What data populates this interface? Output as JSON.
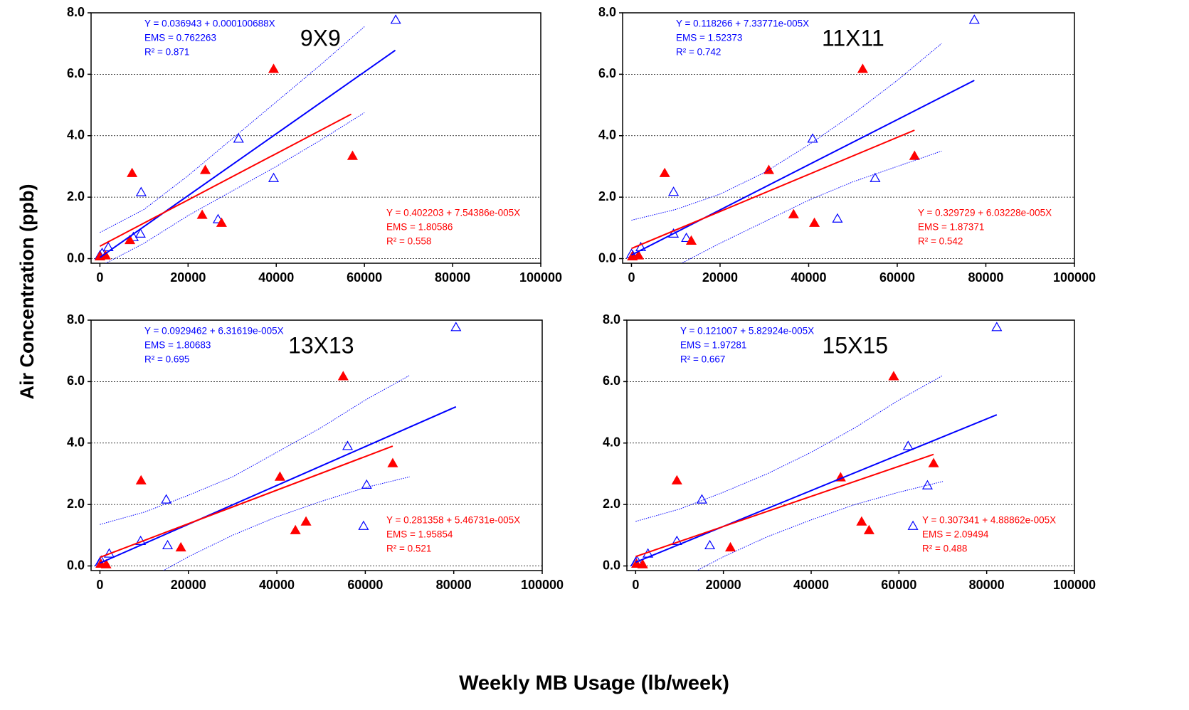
{
  "xlabel": "Weekly MB Usage (lb/week)",
  "ylabel": "Air Concentration (ppb)",
  "chart_data": [
    {
      "type": "scatter",
      "title": "9X9",
      "xlim": [
        -2000,
        100000
      ],
      "ylim": [
        -0.15,
        8
      ],
      "xticks": [
        0,
        20000,
        40000,
        60000,
        80000,
        100000
      ],
      "yticks": [
        {
          "value": 0,
          "label": "0.0"
        },
        {
          "value": 2,
          "label": "2.0"
        },
        {
          "value": 4,
          "label": "4.0"
        },
        {
          "value": 6,
          "label": "6.0"
        },
        {
          "value": 8,
          "label": "8.0"
        }
      ],
      "grid": true,
      "series": [
        {
          "mark": "open-triangle",
          "color": "#0000ff",
          "x": [
            0,
            500,
            1900,
            7600,
            9200,
            9350,
            26800,
            31450,
            39400,
            67100
          ],
          "values": [
            0.1,
            0.18,
            0.37,
            0.7,
            0.81,
            2.16,
            1.28,
            3.9,
            2.62,
            7.77
          ]
        },
        {
          "mark": "filled-triangle",
          "color": "#ff0000",
          "x": [
            0,
            1300,
            6800,
            7300,
            23200,
            23900,
            27600,
            39400,
            57300
          ],
          "values": [
            0.07,
            0.1,
            0.6,
            2.78,
            1.42,
            2.88,
            1.16,
            6.17,
            3.34
          ]
        },
        {
          "mark": "line",
          "color": "#0000ff",
          "x": [
            0,
            67000
          ],
          "values": [
            0.037,
            6.78
          ]
        },
        {
          "mark": "line",
          "color": "#ff0000",
          "x": [
            0,
            57000
          ],
          "values": [
            0.402,
            4.7
          ]
        },
        {
          "mark": "dotted-line",
          "color": "#0000ff",
          "x": [
            0,
            10000,
            20000,
            30000,
            40000,
            50000,
            60000
          ],
          "values": [
            0.85,
            1.6,
            2.7,
            3.9,
            5.1,
            6.3,
            7.55
          ]
        },
        {
          "mark": "dotted-line",
          "color": "#0000ff",
          "x": [
            0,
            10000,
            20000,
            30000,
            40000,
            50000,
            60000
          ],
          "values": [
            -0.25,
            0.5,
            1.4,
            2.2,
            3.0,
            3.85,
            4.75
          ]
        }
      ],
      "annotations": [
        {
          "color": "#0000ff",
          "corner": "top-left",
          "lines": [
            "Y = 0.036943 + 0.000100688X",
            "EMS = 0.762263",
            "R² = 0.871"
          ]
        },
        {
          "color": "#ff0000",
          "corner": "bottom-right",
          "lines": [
            "Y = 0.402203 + 7.54386e-005X",
            "EMS = 1.80586",
            "R² = 0.558"
          ]
        }
      ]
    },
    {
      "type": "scatter",
      "title": "11X11",
      "xlim": [
        -2000,
        100000
      ],
      "ylim": [
        -0.15,
        8
      ],
      "xticks": [
        0,
        20000,
        40000,
        60000,
        80000,
        100000
      ],
      "yticks": [
        {
          "value": 0,
          "label": "0.0"
        },
        {
          "value": 2,
          "label": "2.0"
        },
        {
          "value": 4,
          "label": "4.0"
        },
        {
          "value": 6,
          "label": "6.0"
        },
        {
          "value": 8,
          "label": "8.0"
        }
      ],
      "grid": true,
      "series": [
        {
          "mark": "open-triangle",
          "color": "#0000ff",
          "x": [
            0,
            300,
            2100,
            9500,
            9500,
            12400,
            40900,
            46500,
            55000,
            77400
          ],
          "values": [
            0.15,
            0.1,
            0.37,
            2.17,
            0.81,
            0.67,
            3.9,
            1.3,
            2.62,
            7.77
          ]
        },
        {
          "mark": "filled-triangle",
          "color": "#ff0000",
          "x": [
            200,
            1600,
            7500,
            13500,
            31000,
            36600,
            41300,
            52200,
            63900
          ],
          "values": [
            0.07,
            0.1,
            2.78,
            0.58,
            2.88,
            1.44,
            1.16,
            6.17,
            3.34
          ]
        },
        {
          "mark": "line",
          "color": "#0000ff",
          "x": [
            0,
            77400
          ],
          "values": [
            0.118,
            5.8
          ]
        },
        {
          "mark": "line",
          "color": "#ff0000",
          "x": [
            0,
            63900
          ],
          "values": [
            0.33,
            4.18
          ]
        },
        {
          "mark": "dotted-line",
          "color": "#0000ff",
          "x": [
            0,
            10000,
            20000,
            30000,
            40000,
            50000,
            60000,
            70000
          ],
          "values": [
            1.25,
            1.6,
            2.1,
            2.8,
            3.7,
            4.7,
            5.8,
            7.0
          ]
        },
        {
          "mark": "dotted-line",
          "color": "#0000ff",
          "x": [
            0,
            10000,
            20000,
            30000,
            40000,
            50000,
            60000,
            70000
          ],
          "values": [
            -1.0,
            -0.25,
            0.5,
            1.2,
            1.9,
            2.5,
            3.0,
            3.5
          ]
        }
      ],
      "annotations": [
        {
          "color": "#0000ff",
          "corner": "top-left",
          "lines": [
            "Y = 0.118266 + 7.33771e-005X",
            "EMS = 1.52373",
            "R² = 0.742"
          ]
        },
        {
          "color": "#ff0000",
          "corner": "bottom-right",
          "lines": [
            "Y = 0.329729 + 6.03228e-005X",
            "EMS = 1.87371",
            "R² = 0.542"
          ]
        }
      ]
    },
    {
      "type": "scatter",
      "title": "13X13",
      "xlim": [
        -2000,
        100000
      ],
      "ylim": [
        -0.15,
        8
      ],
      "xticks": [
        0,
        20000,
        40000,
        60000,
        80000,
        100000
      ],
      "yticks": [
        {
          "value": 0,
          "label": "0.0"
        },
        {
          "value": 2,
          "label": "2.0"
        },
        {
          "value": 4,
          "label": "4.0"
        },
        {
          "value": 6,
          "label": "6.0"
        },
        {
          "value": 8,
          "label": "8.0"
        }
      ],
      "grid": true,
      "series": [
        {
          "mark": "open-triangle",
          "color": "#0000ff",
          "x": [
            0,
            300,
            2100,
            9200,
            15000,
            15300,
            56000,
            59600,
            60300,
            80500
          ],
          "values": [
            0.12,
            0.17,
            0.4,
            0.81,
            2.16,
            0.67,
            3.9,
            1.3,
            2.64,
            7.77
          ]
        },
        {
          "mark": "filled-triangle",
          "color": "#ff0000",
          "x": [
            200,
            1400,
            9300,
            18300,
            40700,
            44200,
            46600,
            55000,
            66200
          ],
          "values": [
            0.07,
            0.05,
            2.78,
            0.6,
            2.9,
            1.16,
            1.44,
            6.17,
            3.34
          ]
        },
        {
          "mark": "line",
          "color": "#0000ff",
          "x": [
            0,
            80500
          ],
          "values": [
            0.093,
            5.18
          ]
        },
        {
          "mark": "line",
          "color": "#ff0000",
          "x": [
            0,
            66200
          ],
          "values": [
            0.281,
            3.9
          ]
        },
        {
          "mark": "dotted-line",
          "color": "#0000ff",
          "x": [
            0,
            10000,
            20000,
            30000,
            40000,
            50000,
            60000,
            70000
          ],
          "values": [
            1.35,
            1.75,
            2.3,
            2.9,
            3.7,
            4.5,
            5.4,
            6.2
          ]
        },
        {
          "mark": "dotted-line",
          "color": "#0000ff",
          "x": [
            0,
            10000,
            20000,
            30000,
            40000,
            50000,
            60000,
            70000
          ],
          "values": [
            -1.2,
            -0.5,
            0.3,
            1.0,
            1.6,
            2.1,
            2.55,
            2.9
          ]
        }
      ],
      "annotations": [
        {
          "color": "#0000ff",
          "corner": "top-left",
          "lines": [
            "Y = 0.0929462 + 6.31619e-005X",
            "EMS = 1.80683",
            "R² = 0.695"
          ]
        },
        {
          "color": "#ff0000",
          "corner": "bottom-right",
          "lines": [
            "Y = 0.281358 + 5.46731e-005X",
            "EMS = 1.95854",
            "R² = 0.521"
          ]
        }
      ]
    },
    {
      "type": "scatter",
      "title": "15X15",
      "xlim": [
        -2000,
        100000
      ],
      "ylim": [
        -0.15,
        8
      ],
      "xticks": [
        0,
        20000,
        40000,
        60000,
        80000,
        100000
      ],
      "yticks": [
        {
          "value": 0,
          "label": "0.0"
        },
        {
          "value": 2,
          "label": "2.0"
        },
        {
          "value": 4,
          "label": "4.0"
        },
        {
          "value": 6,
          "label": "6.0"
        },
        {
          "value": 8,
          "label": "8.0"
        }
      ],
      "grid": true,
      "series": [
        {
          "mark": "open-triangle",
          "color": "#0000ff",
          "x": [
            0,
            300,
            2800,
            9400,
            15100,
            16900,
            62100,
            63200,
            66500,
            82300
          ],
          "values": [
            0.12,
            0.17,
            0.4,
            0.81,
            2.16,
            0.67,
            3.9,
            1.3,
            2.62,
            7.77
          ]
        },
        {
          "mark": "filled-triangle",
          "color": "#ff0000",
          "x": [
            200,
            1600,
            9400,
            21600,
            46700,
            51500,
            53200,
            58800,
            67900
          ],
          "values": [
            0.07,
            0.05,
            2.78,
            0.6,
            2.88,
            1.44,
            1.16,
            6.17,
            3.34
          ]
        },
        {
          "mark": "line",
          "color": "#0000ff",
          "x": [
            0,
            82300
          ],
          "values": [
            0.121,
            4.92
          ]
        },
        {
          "mark": "line",
          "color": "#ff0000",
          "x": [
            0,
            67900
          ],
          "values": [
            0.307,
            3.63
          ]
        },
        {
          "mark": "dotted-line",
          "color": "#0000ff",
          "x": [
            0,
            10000,
            20000,
            30000,
            40000,
            50000,
            60000,
            70000
          ],
          "values": [
            1.45,
            1.85,
            2.4,
            3.0,
            3.7,
            4.5,
            5.4,
            6.2
          ]
        },
        {
          "mark": "dotted-line",
          "color": "#0000ff",
          "x": [
            0,
            10000,
            20000,
            30000,
            40000,
            50000,
            60000,
            70000
          ],
          "values": [
            -1.2,
            -0.45,
            0.3,
            0.95,
            1.5,
            2.0,
            2.4,
            2.75
          ]
        }
      ],
      "annotations": [
        {
          "color": "#0000ff",
          "corner": "top-left",
          "lines": [
            "Y = 0.121007 + 5.82924e-005X",
            "EMS = 1.97281",
            "R² = 0.667"
          ]
        },
        {
          "color": "#ff0000",
          "corner": "bottom-right",
          "lines": [
            "Y = 0.307341 + 4.88862e-005X",
            "EMS = 2.09494",
            "R² = 0.488"
          ]
        }
      ]
    }
  ]
}
